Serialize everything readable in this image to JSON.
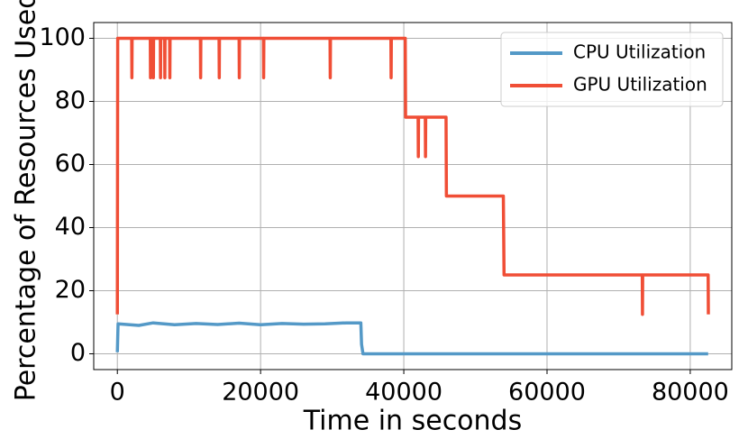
{
  "chart_data": {
    "type": "line",
    "xlabel": "Time in seconds",
    "ylabel": "Percentage of Resources Used",
    "xlim": [
      -3300,
      85800
    ],
    "xticks": [
      0,
      20000,
      40000,
      60000,
      80000
    ],
    "ylim": [
      -5,
      105
    ],
    "yticks": [
      0,
      20,
      40,
      60,
      80,
      100
    ],
    "grid": true,
    "legend": "upper right",
    "series": [
      {
        "name": "CPU Utilization",
        "color": "#5499c7",
        "x": [
          0,
          100,
          3000,
          5000,
          8000,
          11000,
          14000,
          17000,
          20000,
          23000,
          26000,
          29000,
          32000,
          34000,
          34100,
          34300,
          82500
        ],
        "values": [
          0.5,
          9.5,
          9,
          9.8,
          9.2,
          9.6,
          9.3,
          9.7,
          9.2,
          9.6,
          9.4,
          9.5,
          9.8,
          9.8,
          3,
          0,
          0
        ]
      },
      {
        "name": "GPU Utilization",
        "color": "#f04e36",
        "x": [
          0,
          50,
          2000,
          2030,
          2060,
          4600,
          4630,
          4660,
          5000,
          5030,
          5060,
          6000,
          6030,
          6060,
          6600,
          6630,
          6660,
          7300,
          7330,
          7360,
          11600,
          11630,
          11660,
          14200,
          14230,
          14260,
          17000,
          17030,
          17060,
          20400,
          20430,
          20460,
          29700,
          29730,
          29760,
          38200,
          38230,
          38260,
          40200,
          40250,
          42000,
          42030,
          42060,
          43000,
          43030,
          43060,
          45900,
          45950,
          53900,
          54000,
          73300,
          73330,
          73360,
          82500,
          82530
        ],
        "values": [
          12.5,
          100,
          100,
          87.5,
          100,
          100,
          87.5,
          100,
          100,
          87.5,
          100,
          100,
          87.5,
          100,
          100,
          87.5,
          100,
          100,
          87.5,
          100,
          100,
          87.5,
          100,
          100,
          87.5,
          100,
          100,
          87.5,
          100,
          100,
          87.5,
          100,
          100,
          87.5,
          100,
          100,
          87.5,
          100,
          100,
          75,
          75,
          62.5,
          75,
          75,
          62.5,
          75,
          75,
          50,
          50,
          25,
          25,
          12.5,
          25,
          25,
          12.5
        ]
      }
    ]
  }
}
